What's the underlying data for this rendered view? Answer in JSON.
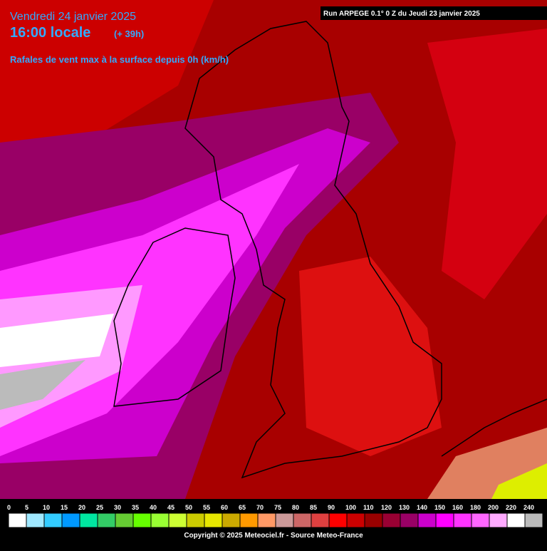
{
  "header": {
    "date": "Vendredi 24 janvier 2025",
    "time": "16:00 locale",
    "lead": "(+ 39h)",
    "subtitle": "Rafales de vent max à la surface depuis 0h (km/h)",
    "run": "Run ARPEGE 0.1° 0 Z du Jeudi 23 janvier 2025"
  },
  "legend": [
    {
      "label": 0,
      "color": "#ffffff"
    },
    {
      "label": 5,
      "color": "#a0e8ff"
    },
    {
      "label": 10,
      "color": "#33ccff"
    },
    {
      "label": 15,
      "color": "#0099ff"
    },
    {
      "label": 20,
      "color": "#00e6a0"
    },
    {
      "label": 25,
      "color": "#33cc66"
    },
    {
      "label": 30,
      "color": "#66cc33"
    },
    {
      "label": 35,
      "color": "#66ff00"
    },
    {
      "label": 40,
      "color": "#99ff33"
    },
    {
      "label": 45,
      "color": "#ccff33"
    },
    {
      "label": 50,
      "color": "#cccc00"
    },
    {
      "label": 55,
      "color": "#e6e600"
    },
    {
      "label": 60,
      "color": "#ccaa00"
    },
    {
      "label": 65,
      "color": "#ff9900"
    },
    {
      "label": 70,
      "color": "#ff9966"
    },
    {
      "label": 75,
      "color": "#cc9999"
    },
    {
      "label": 80,
      "color": "#cc6666"
    },
    {
      "label": 85,
      "color": "#e04040"
    },
    {
      "label": 90,
      "color": "#ff0000"
    },
    {
      "label": 100,
      "color": "#cc0000"
    },
    {
      "label": 110,
      "color": "#990000"
    },
    {
      "label": 120,
      "color": "#990033"
    },
    {
      "label": 130,
      "color": "#990066"
    },
    {
      "label": 140,
      "color": "#cc00cc"
    },
    {
      "label": 150,
      "color": "#ff00ff"
    },
    {
      "label": 160,
      "color": "#ff33ff"
    },
    {
      "label": 180,
      "color": "#ff66ff"
    },
    {
      "label": 200,
      "color": "#ffaaff"
    },
    {
      "label": 220,
      "color": "#ffffff"
    },
    {
      "label": 240,
      "color": "#bbbbbb"
    }
  ],
  "footer": {
    "copyright": "Copyright © 2025 Meteociel.fr - Source Meteo-France"
  }
}
